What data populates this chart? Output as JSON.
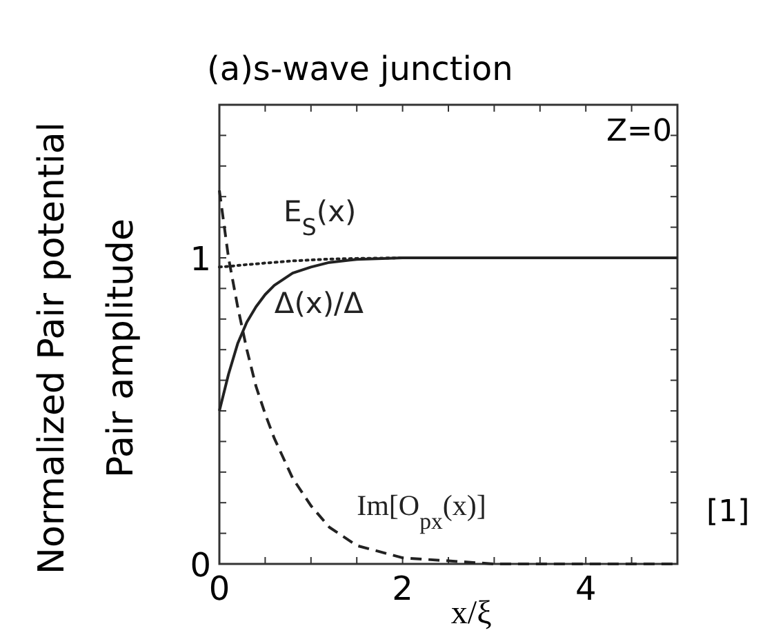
{
  "chart_data": {
    "type": "line",
    "title": "(a)s-wave junction",
    "xlabel": "x/ξ",
    "ylabel": "Normalized Pair potential\nPair amplitude",
    "x": [
      0,
      0.1,
      0.2,
      0.3,
      0.4,
      0.5,
      0.6,
      0.8,
      1,
      1.2,
      1.5,
      2,
      2.5,
      3,
      4,
      5
    ],
    "series": [
      {
        "name": "E$_{S}$(x)",
        "color": "#222222",
        "line_style": "dotted",
        "values": [
          0.97,
          0.972,
          0.975,
          0.978,
          0.98,
          0.983,
          0.985,
          0.99,
          0.993,
          0.996,
          0.998,
          1,
          1,
          1,
          1,
          1
        ]
      },
      {
        "name": "Δ(x)/Δ",
        "color": "#222222",
        "line_style": "solid",
        "values": [
          0.5,
          0.62,
          0.72,
          0.79,
          0.84,
          0.88,
          0.91,
          0.95,
          0.97,
          0.985,
          0.995,
          1,
          1,
          1,
          1,
          1
        ]
      },
      {
        "name": "Im[O$_{px}$(x)]",
        "color": "#222222",
        "line_style": "dashed",
        "values": [
          1.22,
          1.0,
          0.84,
          0.7,
          0.58,
          0.49,
          0.41,
          0.28,
          0.19,
          0.12,
          0.06,
          0.02,
          0.01,
          0,
          0,
          0
        ]
      }
    ],
    "xlim": [
      0,
      5
    ],
    "ylim": [
      0,
      1.5
    ],
    "xticks": [
      0,
      {
        "value": 0.5,
        "label": null
      },
      {
        "value": 1,
        "label": null
      },
      {
        "value": 1.5,
        "label": null
      },
      2,
      {
        "value": 2.5,
        "label": null
      },
      {
        "value": 3,
        "label": null
      },
      {
        "value": 3.5,
        "label": null
      },
      4,
      {
        "value": 4.5,
        "label": null
      }
    ],
    "yticks": [
      0,
      {
        "value": 0.1,
        "label": null
      },
      {
        "value": 0.2,
        "label": null
      },
      {
        "value": 0.3,
        "label": null
      },
      {
        "value": 0.4,
        "label": null
      },
      {
        "value": 0.5,
        "label": null
      },
      {
        "value": 0.6,
        "label": null
      },
      {
        "value": 0.7,
        "label": null
      },
      {
        "value": 0.8,
        "label": null
      },
      {
        "value": 0.9,
        "label": null
      },
      1,
      {
        "value": 1.1,
        "label": null
      },
      {
        "value": 1.2,
        "label": null
      },
      {
        "value": 1.3,
        "label": null
      },
      {
        "value": 1.4,
        "label": null
      }
    ],
    "annotations": [
      "Z=0",
      "[1]"
    ]
  }
}
